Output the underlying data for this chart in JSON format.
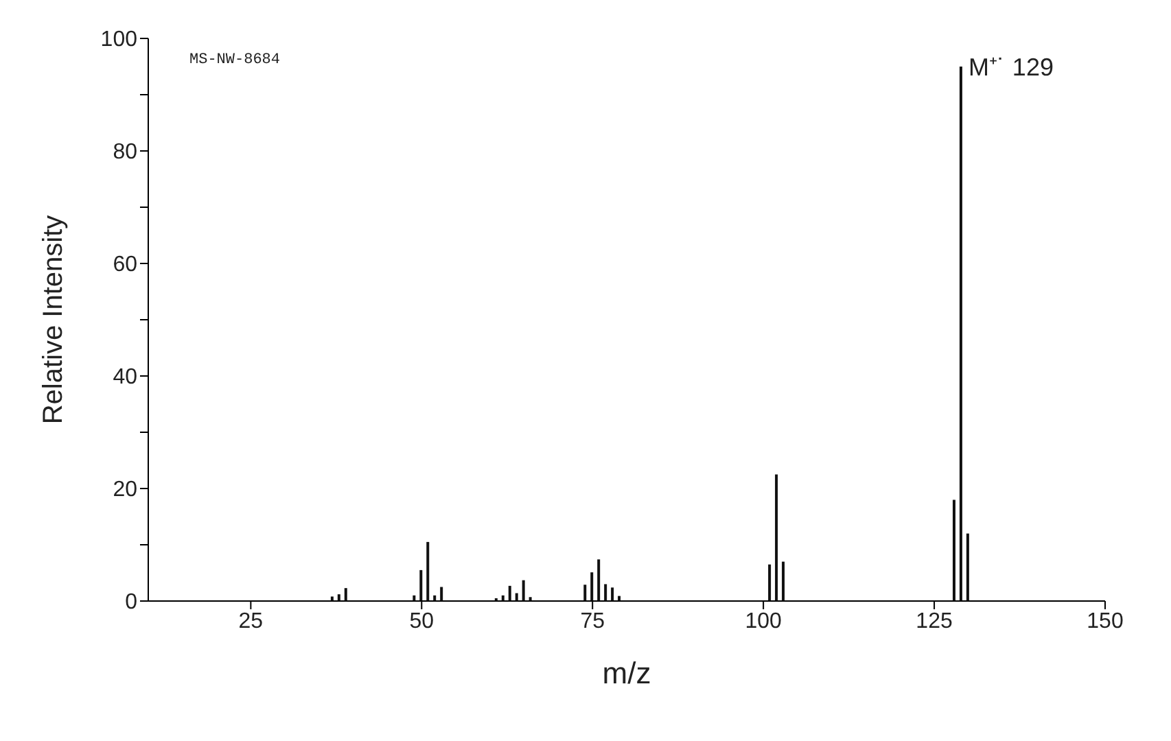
{
  "chart_data": {
    "type": "bar",
    "xlabel": "m/z",
    "ylabel": "Relative Intensity",
    "x": [
      37,
      38,
      39,
      49,
      50,
      51,
      52,
      53,
      61,
      62,
      63,
      64,
      65,
      66,
      74,
      75,
      76,
      77,
      78,
      79,
      101,
      102,
      103,
      128,
      129,
      130
    ],
    "values": [
      0.8,
      1.2,
      2.3,
      1,
      5.5,
      10.5,
      1,
      2.5,
      0.5,
      1,
      2.7,
      1.4,
      3.7,
      0.7,
      2.9,
      5.1,
      7.4,
      3,
      2.4,
      0.9,
      6.5,
      22.5,
      7,
      18,
      95,
      12
    ],
    "color": "#111111",
    "xlim": [
      10,
      150
    ],
    "xticks": [
      25,
      50,
      75,
      100,
      125,
      150
    ],
    "ylim": [
      0,
      100
    ],
    "yticks": [
      0,
      {
        "value": 10,
        "label": null
      },
      20,
      {
        "value": 30,
        "label": null
      },
      40,
      {
        "value": 50,
        "label": null
      },
      60,
      {
        "value": 70,
        "label": null
      },
      80,
      {
        "value": 90,
        "label": null
      },
      100
    ],
    "annotations": [
      "MS-NW-8684",
      {
        "text": "M⁺˙ 129",
        "x": 129,
        "y": 95
      }
    ],
    "grid": false,
    "legend": false
  }
}
